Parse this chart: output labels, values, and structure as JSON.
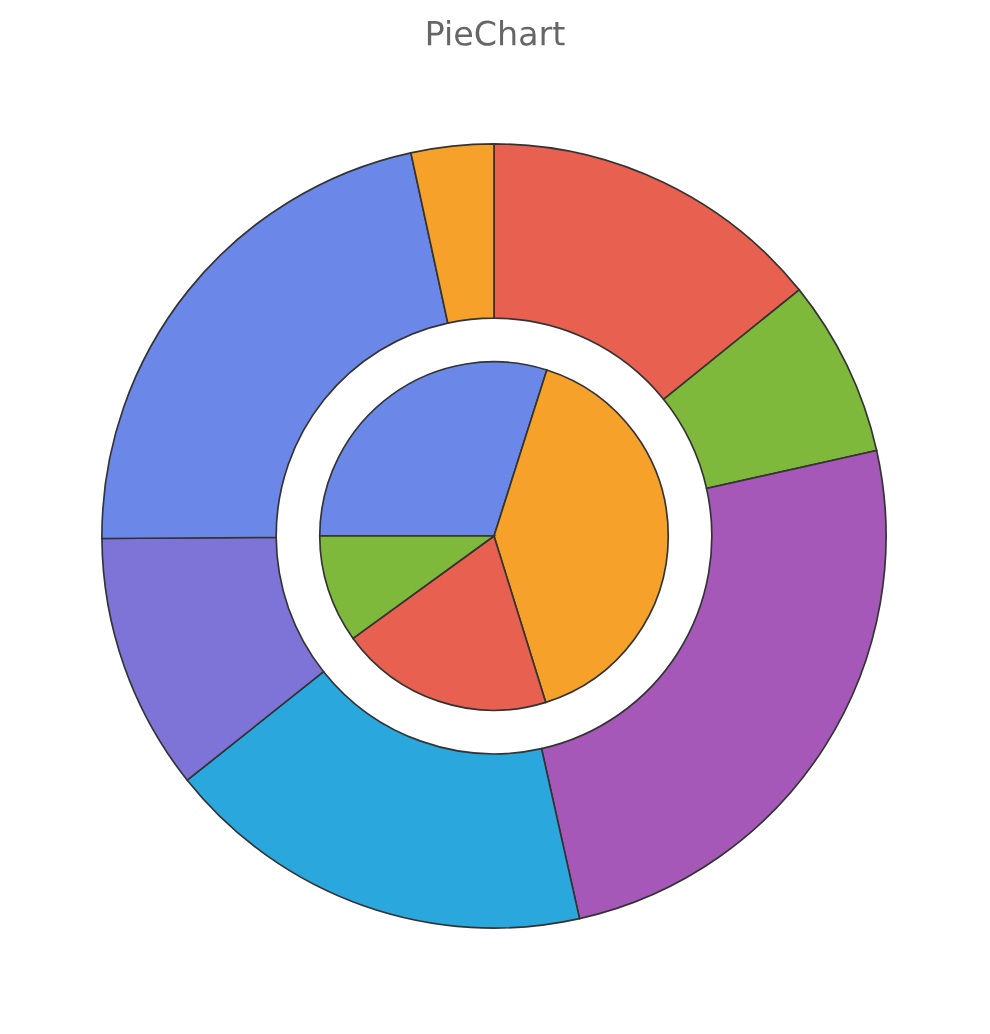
{
  "chart_data": {
    "type": "donut",
    "title": "PieChart",
    "series": [
      {
        "values": [
          14.2,
          7.3,
          25.0,
          17.8,
          10.6,
          21.7,
          3.4
        ],
        "colors": [
          "#e8604f",
          "#7fb93c",
          "#a558b8",
          "#2aa7dd",
          "#7e73d6",
          "#6b88e8",
          "#f5a12a"
        ]
      },
      {
        "type": "pie",
        "values": [
          29.9,
          40.3,
          19.8,
          10.0
        ],
        "colors": [
          "#6b88e8",
          "#f5a12a",
          "#e8604f",
          "#7fb93c"
        ]
      }
    ]
  }
}
